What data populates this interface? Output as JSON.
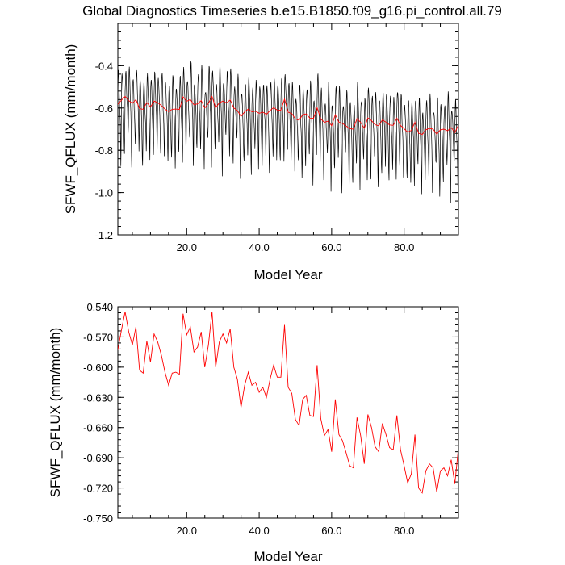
{
  "title": "Global Diagnostics Timeseries b.e15.B1850.f09_g16.pi_control.all.79",
  "colors": {
    "monthly": "#000000",
    "annual": "#ff0000"
  },
  "chart_data": [
    {
      "type": "line",
      "title": "Global Diagnostics Timeseries b.e15.B1850.f09_g16.pi_control.all.79",
      "xlabel": "Model Year",
      "ylabel": "SFWF_QFLUX (mm/month)",
      "xlim": [
        1,
        95
      ],
      "ylim": [
        -1.2,
        -0.2
      ],
      "xticks": [
        20,
        40,
        60,
        80
      ],
      "xtick_labels": [
        "20.0",
        "40.0",
        "60.0",
        "80.0"
      ],
      "yticks": [
        -1.2,
        -1.0,
        -0.8,
        -0.6,
        -0.4
      ],
      "ytick_labels": [
        "-1.2",
        "-1.0",
        "-0.8",
        "-0.6",
        "-0.4"
      ],
      "series": [
        {
          "name": "monthly",
          "color": "#000000",
          "generated": "monthly_seasonal_cycle_around_annual_mean"
        },
        {
          "name": "annual mean",
          "color": "#ff0000",
          "ref": "annual"
        }
      ]
    },
    {
      "type": "line",
      "title": "",
      "xlabel": "Model Year",
      "ylabel": "SFWF_QFLUX (mm/month)",
      "xlim": [
        1,
        95
      ],
      "ylim": [
        -0.75,
        -0.54
      ],
      "xticks": [
        20,
        40,
        60,
        80
      ],
      "xtick_labels": [
        "20.0",
        "40.0",
        "60.0",
        "80.0"
      ],
      "yticks": [
        -0.75,
        -0.72,
        -0.69,
        -0.66,
        -0.63,
        -0.6,
        -0.57,
        -0.54
      ],
      "ytick_labels": [
        "-0.750",
        "-0.720",
        "-0.690",
        "-0.660",
        "-0.630",
        "-0.600",
        "-0.570",
        "-0.540"
      ],
      "series": [
        {
          "name": "annual mean",
          "color": "#ff0000",
          "x_start": 1,
          "values": [
            -0.583,
            -0.563,
            -0.545,
            -0.565,
            -0.578,
            -0.56,
            -0.603,
            -0.606,
            -0.574,
            -0.595,
            -0.567,
            -0.575,
            -0.588,
            -0.605,
            -0.618,
            -0.606,
            -0.605,
            -0.607,
            -0.547,
            -0.568,
            -0.56,
            -0.585,
            -0.58,
            -0.565,
            -0.6,
            -0.578,
            -0.545,
            -0.6,
            -0.575,
            -0.567,
            -0.576,
            -0.562,
            -0.6,
            -0.612,
            -0.64,
            -0.618,
            -0.605,
            -0.618,
            -0.615,
            -0.625,
            -0.62,
            -0.63,
            -0.612,
            -0.598,
            -0.61,
            -0.61,
            -0.558,
            -0.62,
            -0.626,
            -0.652,
            -0.658,
            -0.632,
            -0.628,
            -0.648,
            -0.649,
            -0.598,
            -0.651,
            -0.668,
            -0.662,
            -0.684,
            -0.632,
            -0.667,
            -0.673,
            -0.685,
            -0.698,
            -0.7,
            -0.65,
            -0.668,
            -0.696,
            -0.647,
            -0.66,
            -0.679,
            -0.684,
            -0.656,
            -0.667,
            -0.68,
            -0.682,
            -0.648,
            -0.682,
            -0.698,
            -0.715,
            -0.706,
            -0.667,
            -0.72,
            -0.725,
            -0.703,
            -0.696,
            -0.7,
            -0.724,
            -0.703,
            -0.7,
            -0.708,
            -0.692,
            -0.716,
            -0.68
          ]
        }
      ]
    }
  ]
}
